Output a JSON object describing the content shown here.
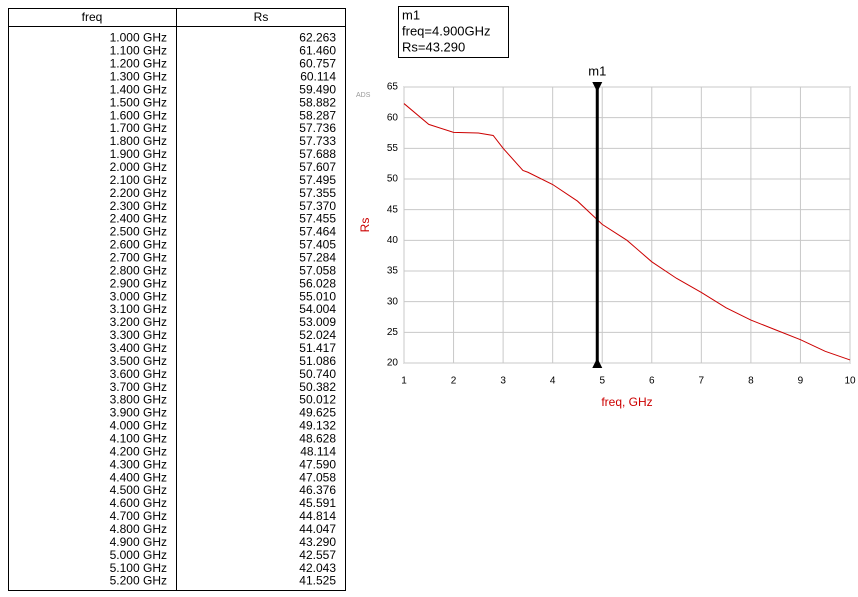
{
  "table": {
    "headers": [
      "freq",
      "Rs"
    ],
    "rows": [
      [
        "1.000 GHz",
        "62.263"
      ],
      [
        "1.100 GHz",
        "61.460"
      ],
      [
        "1.200 GHz",
        "60.757"
      ],
      [
        "1.300 GHz",
        "60.114"
      ],
      [
        "1.400 GHz",
        "59.490"
      ],
      [
        "1.500 GHz",
        "58.882"
      ],
      [
        "1.600 GHz",
        "58.287"
      ],
      [
        "1.700 GHz",
        "57.736"
      ],
      [
        "1.800 GHz",
        "57.733"
      ],
      [
        "1.900 GHz",
        "57.688"
      ],
      [
        "2.000 GHz",
        "57.607"
      ],
      [
        "2.100 GHz",
        "57.495"
      ],
      [
        "2.200 GHz",
        "57.355"
      ],
      [
        "2.300 GHz",
        "57.370"
      ],
      [
        "2.400 GHz",
        "57.455"
      ],
      [
        "2.500 GHz",
        "57.464"
      ],
      [
        "2.600 GHz",
        "57.405"
      ],
      [
        "2.700 GHz",
        "57.284"
      ],
      [
        "2.800 GHz",
        "57.058"
      ],
      [
        "2.900 GHz",
        "56.028"
      ],
      [
        "3.000 GHz",
        "55.010"
      ],
      [
        "3.100 GHz",
        "54.004"
      ],
      [
        "3.200 GHz",
        "53.009"
      ],
      [
        "3.300 GHz",
        "52.024"
      ],
      [
        "3.400 GHz",
        "51.417"
      ],
      [
        "3.500 GHz",
        "51.086"
      ],
      [
        "3.600 GHz",
        "50.740"
      ],
      [
        "3.700 GHz",
        "50.382"
      ],
      [
        "3.800 GHz",
        "50.012"
      ],
      [
        "3.900 GHz",
        "49.625"
      ],
      [
        "4.000 GHz",
        "49.132"
      ],
      [
        "4.100 GHz",
        "48.628"
      ],
      [
        "4.200 GHz",
        "48.114"
      ],
      [
        "4.300 GHz",
        "47.590"
      ],
      [
        "4.400 GHz",
        "47.058"
      ],
      [
        "4.500 GHz",
        "46.376"
      ],
      [
        "4.600 GHz",
        "45.591"
      ],
      [
        "4.700 GHz",
        "44.814"
      ],
      [
        "4.800 GHz",
        "44.047"
      ],
      [
        "4.900 GHz",
        "43.290"
      ],
      [
        "5.000 GHz",
        "42.557"
      ],
      [
        "5.100 GHz",
        "42.043"
      ],
      [
        "5.200 GHz",
        "41.525"
      ]
    ]
  },
  "chart_data": {
    "type": "line",
    "corner_text": "ADS",
    "x_label": "freq, GHz",
    "y_label": "Rs",
    "x": [
      1,
      1.5,
      2,
      2.5,
      2.8,
      3,
      3.4,
      3.5,
      4,
      4.5,
      5,
      5.5,
      6,
      6.5,
      7,
      7.5,
      8,
      8.5,
      9,
      9.5,
      10
    ],
    "series": [
      {
        "color": "#cc0000",
        "values": [
          62.3,
          58.9,
          57.6,
          57.5,
          57.1,
          55.0,
          51.4,
          51.1,
          49.1,
          46.4,
          42.6,
          40.0,
          36.5,
          33.8,
          31.5,
          29.0,
          27.0,
          25.4,
          23.8,
          21.9,
          20.5
        ]
      }
    ],
    "xlim": [
      1,
      10
    ],
    "xticks": [
      1,
      2,
      3,
      4,
      5,
      6,
      7,
      8,
      9,
      10
    ],
    "ylim": [
      20,
      65
    ],
    "yticks": [
      20,
      25,
      30,
      35,
      40,
      45,
      50,
      55,
      60,
      65
    ],
    "grid": true,
    "marker": {
      "name": "m1",
      "x": 4.9,
      "readout": [
        "m1",
        "freq=4.900GHz",
        "Rs=43.290"
      ]
    }
  }
}
